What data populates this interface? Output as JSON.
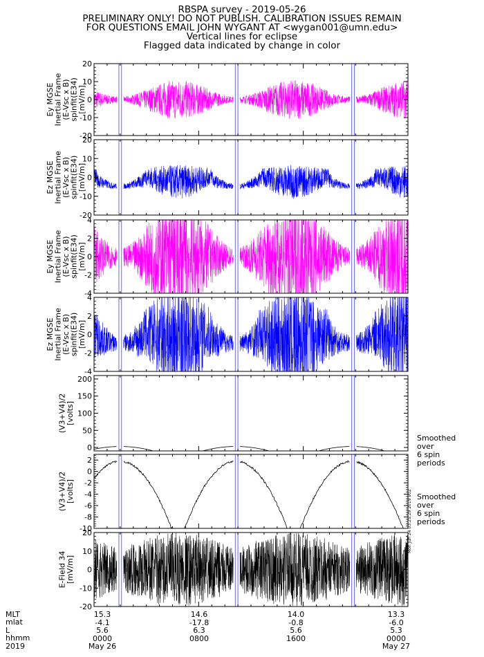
{
  "header": {
    "lines": [
      "RBSPA survey - 2019-05-26",
      "PRELIMINARY ONLY! DO NOT PUBLISH. CALIBRATION ISSUES REMAIN",
      "FOR QUESTIONS EMAIL JOHN WYGANT AT <wygan001@umn.edu>",
      "Vertical lines for eclipse",
      "Flagged data indicated by change in color"
    ]
  },
  "chart_data": {
    "type": "line",
    "x_unit": "hours from 2019-05-26 0000",
    "xlim": [
      0,
      24
    ],
    "eclipse_lines_hours": [
      1.9,
      2.1,
      10.8,
      11.0,
      19.7,
      19.9
    ],
    "colors": {
      "magenta": "#ff00ff",
      "blue": "#0000ff",
      "black": "#000000",
      "eclipse": "#6666ff"
    },
    "panels": [
      {
        "id": "ey20",
        "ylabel": [
          "Ey MGSE",
          "Inertial Frame",
          "(E-Vsc x B)",
          "spinfit(E34)",
          "[mV/m]"
        ],
        "ylim": [
          -20,
          20
        ],
        "ticks": [
          20,
          10,
          0,
          -10,
          -20
        ],
        "color": "magenta",
        "amp": 0.55
      },
      {
        "id": "ez20",
        "ylabel": [
          "Ez MGSE",
          "Inertial Frame",
          "(E-Vsc x B)",
          "spinfit(E34)",
          "[mV/m]"
        ],
        "ylim": [
          -20,
          20
        ],
        "ticks": [
          20,
          10,
          0,
          -10,
          -20
        ],
        "color": "blue",
        "amp": 0.45
      },
      {
        "id": "ey4",
        "ylabel": [
          "Ey MGSE",
          "Inertial Frame",
          "(E-Vsc x B)",
          "spinfit(E34)",
          "[mV/m]"
        ],
        "ylim": [
          -4,
          4
        ],
        "ticks": [
          4,
          2,
          0,
          -2,
          -4
        ],
        "color": "magenta",
        "amp": 1.6
      },
      {
        "id": "ez4",
        "ylabel": [
          "Ez MGSE",
          "Inertial Frame",
          "(E-Vsc x B)",
          "spinfit(E34)",
          "[mV/m]"
        ],
        "ylim": [
          -4,
          4
        ],
        "ticks": [
          4,
          2,
          0,
          -2,
          -4
        ],
        "color": "blue",
        "amp": 1.4
      },
      {
        "id": "v200",
        "ylabel": [
          "(V3+V4)/2",
          "[volts]"
        ],
        "ylim": [
          -10,
          210
        ],
        "ticks": [
          200,
          150,
          100,
          50,
          0
        ],
        "color": "black",
        "note": [
          "Smoothed",
          "over",
          "6 spin",
          "periods"
        ]
      },
      {
        "id": "v2",
        "ylabel": [
          "(V3+V4)/2",
          "[volts]"
        ],
        "ylim": [
          -10,
          3
        ],
        "ticks": [
          2,
          0,
          -2,
          -4,
          -6,
          -8,
          -10
        ],
        "color": "black",
        "note": [
          "Smoothed",
          "over",
          "6 spin",
          "periods"
        ]
      },
      {
        "id": "e34",
        "ylabel": [
          "E-Field 34",
          "[mV/m]"
        ],
        "ylim": [
          -20,
          20
        ],
        "ticks": [
          20,
          10,
          0,
          -10,
          -20
        ],
        "color": "black",
        "amp": 1.0
      }
    ]
  },
  "footer": {
    "labels": [
      "MLT",
      "mlat",
      "L",
      "hhmm",
      "2019"
    ],
    "columns": [
      {
        "hour": 0,
        "values": [
          "15.3",
          "-4.1",
          "5.6",
          "0000",
          "May 26"
        ]
      },
      {
        "hour": 8,
        "values": [
          "14.6",
          "-17.8",
          "6.3",
          "0800",
          ""
        ]
      },
      {
        "hour": 16,
        "values": [
          "14.0",
          "-0.8",
          "5.6",
          "1600",
          ""
        ]
      },
      {
        "hour": 24,
        "values": [
          "13.3",
          "-6.0",
          "5.3",
          "0000",
          "May 27"
        ]
      }
    ],
    "stamp": "Mon Jun 24 03:25:29 2019 v02"
  }
}
